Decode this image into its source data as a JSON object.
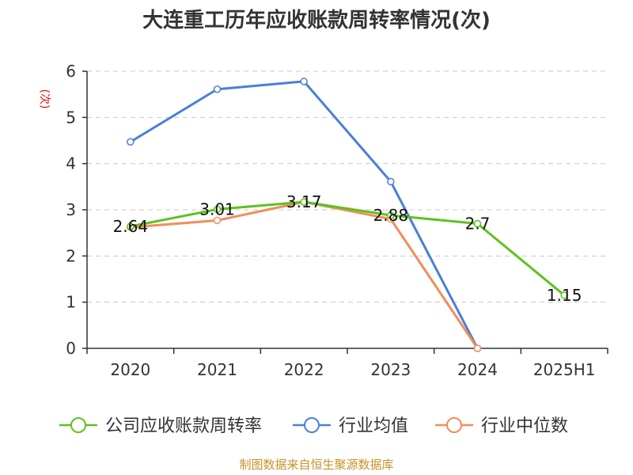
{
  "chart_data": {
    "type": "line",
    "title": "大连重工历年应收账款周转率情况(次)",
    "ylabel": "(次)",
    "xlabel": "",
    "categories": [
      "2020",
      "2021",
      "2022",
      "2023",
      "2024",
      "2025H1"
    ],
    "ylim": [
      0,
      6
    ],
    "yticks": [
      "0",
      "1",
      "2",
      "3",
      "4",
      "5",
      "6"
    ],
    "grid": true,
    "legend_position": "bottom",
    "series": [
      {
        "name": "公司应收账款周转率",
        "color": "#5cc21f",
        "values": [
          2.64,
          3.01,
          3.17,
          2.88,
          2.7,
          1.15
        ],
        "labels": [
          "2.64",
          "3.01",
          "3.17",
          "2.88",
          "2.7",
          "1.15"
        ]
      },
      {
        "name": "行业均值",
        "color": "#4a7fd9",
        "values": [
          4.47,
          5.61,
          5.78,
          3.61,
          0.0,
          null
        ]
      },
      {
        "name": "行业中位数",
        "color": "#f28c5a",
        "values": [
          2.62,
          2.77,
          3.17,
          2.8,
          0.0,
          null
        ]
      }
    ],
    "source": "制图数据来自恒生聚源数据库"
  }
}
